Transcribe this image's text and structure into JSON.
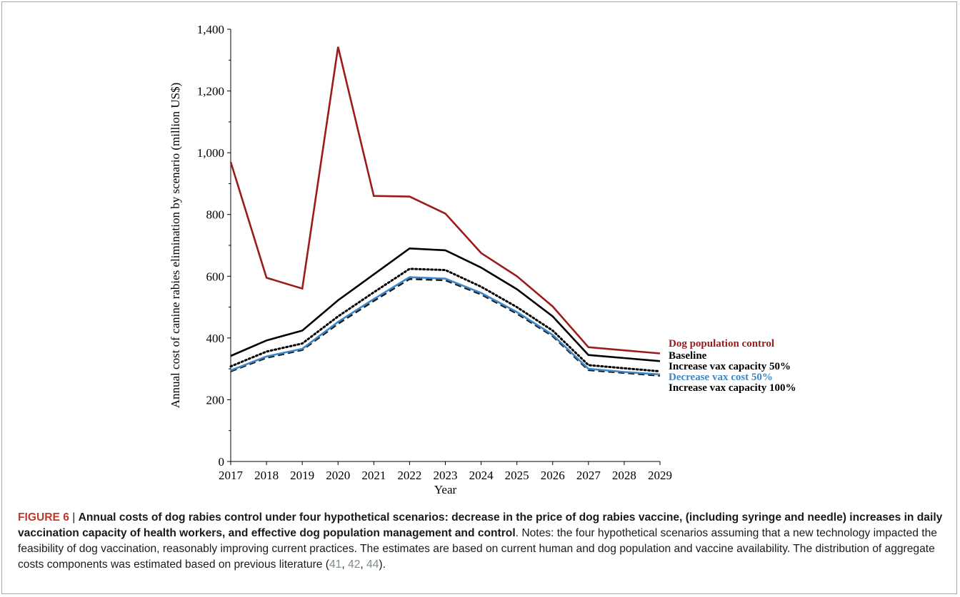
{
  "chart_data": {
    "type": "line",
    "ylabel": "Annual cost of canine rabies elimination by scenario (million US$)",
    "xlabel": "Year",
    "ylim": [
      0,
      1400
    ],
    "yticks": [
      0,
      200,
      400,
      600,
      800,
      1000,
      1200,
      1400
    ],
    "ytick_labels": [
      "0",
      "200",
      "400",
      "600",
      "800",
      "1,000",
      "1,200",
      "1,400"
    ],
    "x": [
      2017,
      2018,
      2019,
      2020,
      2021,
      2022,
      2023,
      2024,
      2025,
      2026,
      2027,
      2028,
      2029
    ],
    "xtick_labels": [
      "2017",
      "2018",
      "2019",
      "2020",
      "2021",
      "2022",
      "2023",
      "2024",
      "2025",
      "2026",
      "2027",
      "2028",
      "2029"
    ],
    "grid": false,
    "legend": "right, inline labels near line ends",
    "series": [
      {
        "name": "Dog population control",
        "color": "#9b1b1b",
        "style": "solid",
        "values": [
          970,
          595,
          560,
          1343,
          860,
          858,
          803,
          675,
          600,
          502,
          370,
          360,
          350
        ]
      },
      {
        "name": "Baseline",
        "color": "#000000",
        "style": "solid",
        "values": [
          342,
          392,
          424,
          522,
          606,
          690,
          684,
          628,
          558,
          470,
          345,
          335,
          325
        ]
      },
      {
        "name": "Increase vax capacity 50%",
        "color": "#000000",
        "style": "dotted",
        "values": [
          308,
          356,
          382,
          470,
          548,
          624,
          620,
          566,
          500,
          424,
          312,
          302,
          292
        ]
      },
      {
        "name": "Decrease vax cost 50%",
        "color": "#3d87c7",
        "style": "solid",
        "values": [
          295,
          340,
          365,
          452,
          526,
          597,
          592,
          546,
          484,
          410,
          300,
          290,
          282
        ]
      },
      {
        "name": "Increase vax capacity 100%",
        "color": "#1a1a1a",
        "style": "dashed",
        "values": [
          292,
          336,
          361,
          446,
          520,
          591,
          587,
          541,
          479,
          406,
          296,
          287,
          278
        ]
      }
    ]
  },
  "caption": {
    "figure_label": "FIGURE 6",
    "separator": " | ",
    "bold_text": "Annual costs of dog rabies control under four hypothetical scenarios: decrease in the price of dog rabies vaccine, (including syringe and needle) increases in daily vaccination capacity of health workers, and effective dog population management and control",
    "notes_text": ". Notes: the four hypothetical scenarios assuming that a new technology impacted the feasibility of dog vaccination, reasonably improving current practices. The estimates are based on current human and dog population and vaccine availability. The distribution of aggregate costs components was estimated based on previous literature (",
    "refs": [
      "41",
      "42",
      "44"
    ],
    "ref_sep": ", ",
    "end_text": ")."
  }
}
